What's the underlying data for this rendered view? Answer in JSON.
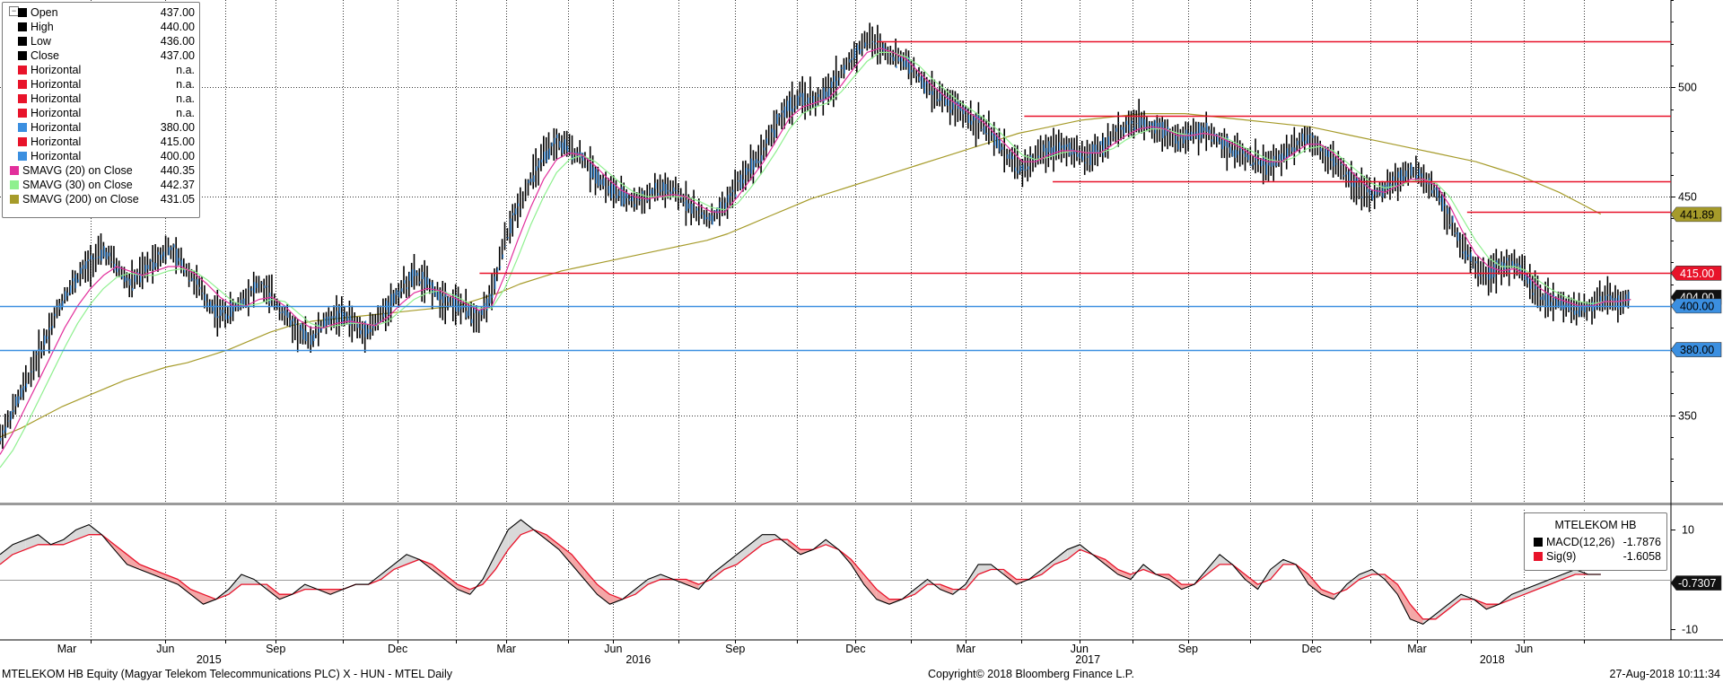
{
  "chart_data": [
    {
      "type": "candlestick",
      "title": "",
      "xlabel": "",
      "ylabel": "",
      "ylim": [
        310,
        540
      ],
      "y_ticks": [
        350,
        400,
        450,
        500
      ],
      "x_labels": [
        "Mar",
        "Jun",
        "Sep",
        "Dec",
        "Mar",
        "Jun",
        "Sep",
        "Dec",
        "Mar",
        "Jun",
        "Sep",
        "Dec",
        "Mar",
        "Jun"
      ],
      "year_labels": [
        "2015",
        "2016",
        "2017",
        "2018"
      ],
      "grid": true,
      "legend_placement": "top-left",
      "legend": [
        {
          "label": "Open",
          "value": "437.00",
          "color": "#000000"
        },
        {
          "label": "High",
          "value": "440.00",
          "color": "#000000"
        },
        {
          "label": "Low",
          "value": "436.00",
          "color": "#000000"
        },
        {
          "label": "Close",
          "value": "437.00",
          "color": "#000000"
        },
        {
          "label": "Horizontal",
          "value": "n.a.",
          "color": "#e8132a"
        },
        {
          "label": "Horizontal",
          "value": "n.a.",
          "color": "#e8132a"
        },
        {
          "label": "Horizontal",
          "value": "n.a.",
          "color": "#e8132a"
        },
        {
          "label": "Horizontal",
          "value": "n.a.",
          "color": "#e8132a"
        },
        {
          "label": "Horizontal",
          "value": "380.00",
          "color": "#3b8fe0"
        },
        {
          "label": "Horizontal",
          "value": "415.00",
          "color": "#e8132a"
        },
        {
          "label": "Horizontal",
          "value": "400.00",
          "color": "#3b8fe0"
        },
        {
          "label": "SMAVG (20) on Close",
          "value": "440.35",
          "color": "#e22f9c"
        },
        {
          "label": "SMAVG (30) on Close",
          "value": "442.37",
          "color": "#8ff08f"
        },
        {
          "label": "SMAVG (200) on Close",
          "value": "431.05",
          "color": "#a69b2a"
        }
      ],
      "price_tags": [
        {
          "value": "441.89",
          "y": 441.89,
          "color": "#a69b2a",
          "text_color": "#000000"
        },
        {
          "value": "415.00",
          "y": 415,
          "color": "#e8132a",
          "text_color": "#ffffff"
        },
        {
          "value": "404.00",
          "y": 404,
          "color": "#111111",
          "text_color": "#ffffff"
        },
        {
          "value": "400.00",
          "y": 400,
          "color": "#3b8fe0",
          "text_color": "#000000"
        },
        {
          "value": "380.00",
          "y": 380,
          "color": "#3b8fe0",
          "text_color": "#000000"
        }
      ],
      "horizontal_lines": [
        {
          "y": 521,
          "x_from": 0.525,
          "color": "#e8132a"
        },
        {
          "y": 487,
          "x_from": 0.613,
          "color": "#e8132a"
        },
        {
          "y": 457,
          "x_from": 0.63,
          "color": "#e8132a"
        },
        {
          "y": 443,
          "x_from": 0.878,
          "color": "#e8132a"
        },
        {
          "y": 415,
          "x_from": 0.287,
          "color": "#e8132a"
        },
        {
          "y": 400,
          "x_from": 0.0,
          "color": "#3b8fe0"
        },
        {
          "y": 380,
          "x_from": 0.0,
          "color": "#3b8fe0"
        }
      ],
      "close_series": {
        "name": "Close",
        "x_start": 0.0,
        "x_end": 0.976,
        "values": [
          340,
          352,
          365,
          378,
          392,
          405,
          413,
          420,
          425,
          418,
          410,
          415,
          422,
          426,
          420,
          412,
          402,
          396,
          398,
          405,
          410,
          404,
          396,
          388,
          385,
          392,
          396,
          394,
          388,
          392,
          400,
          408,
          414,
          410,
          404,
          402,
          398,
          395,
          405,
          430,
          445,
          458,
          468,
          475,
          472,
          468,
          460,
          454,
          450,
          448,
          450,
          454,
          452,
          448,
          442,
          440,
          446,
          456,
          464,
          472,
          484,
          492,
          495,
          494,
          498,
          507,
          515,
          522,
          519,
          514,
          512,
          504,
          498,
          494,
          490,
          486,
          482,
          475,
          468,
          462,
          468,
          472,
          474,
          470,
          468,
          472,
          478,
          482,
          484,
          482,
          480,
          476,
          478,
          480,
          477,
          472,
          470,
          466,
          464,
          468,
          474,
          478,
          472,
          466,
          460,
          454,
          450,
          454,
          458,
          462,
          458,
          452,
          440,
          426,
          418,
          414,
          418,
          420,
          412,
          404,
          402,
          400,
          398,
          400,
          404,
          401,
          405
        ]
      },
      "sma20_series": {
        "name": "SMAVG (20) on Close",
        "x_start": 0.0,
        "x_end": 0.976,
        "values": [
          332,
          342,
          354,
          366,
          378,
          390,
          400,
          408,
          414,
          418,
          416,
          414,
          416,
          418,
          418,
          415,
          410,
          404,
          400,
          400,
          403,
          404,
          400,
          394,
          390,
          390,
          392,
          393,
          392,
          391,
          395,
          401,
          406,
          408,
          407,
          404,
          401,
          398,
          400,
          414,
          430,
          445,
          458,
          467,
          470,
          469,
          464,
          458,
          453,
          450,
          449,
          450,
          451,
          450,
          446,
          443,
          443,
          450,
          458,
          466,
          476,
          486,
          491,
          493,
          495,
          501,
          509,
          516,
          518,
          516,
          513,
          507,
          501,
          496,
          492,
          488,
          484,
          478,
          472,
          466,
          466,
          469,
          471,
          471,
          470,
          470,
          474,
          478,
          481,
          482,
          481,
          478,
          478,
          479,
          478,
          475,
          472,
          468,
          466,
          466,
          470,
          474,
          474,
          470,
          464,
          458,
          453,
          452,
          455,
          458,
          458,
          455,
          446,
          434,
          424,
          418,
          416,
          417,
          414,
          408,
          404,
          402,
          400,
          400,
          402,
          402,
          403
        ]
      },
      "sma30_series": {
        "name": "SMAVG (30) on Close",
        "x_start": 0.0,
        "x_end": 0.976,
        "values": [
          326,
          334,
          345,
          357,
          369,
          381,
          392,
          401,
          408,
          413,
          415,
          414,
          414,
          416,
          417,
          416,
          412,
          407,
          402,
          400,
          401,
          403,
          402,
          397,
          392,
          390,
          391,
          392,
          392,
          391,
          393,
          398,
          403,
          406,
          407,
          405,
          402,
          399,
          399,
          408,
          422,
          437,
          450,
          461,
          467,
          469,
          466,
          461,
          456,
          452,
          450,
          450,
          450,
          450,
          448,
          445,
          444,
          447,
          454,
          462,
          471,
          481,
          488,
          491,
          493,
          498,
          505,
          512,
          516,
          516,
          514,
          510,
          504,
          499,
          494,
          490,
          486,
          481,
          475,
          469,
          467,
          468,
          470,
          471,
          470,
          470,
          472,
          476,
          479,
          481,
          481,
          479,
          478,
          479,
          478,
          476,
          473,
          470,
          467,
          466,
          468,
          472,
          473,
          471,
          466,
          461,
          456,
          454,
          455,
          457,
          458,
          456,
          450,
          440,
          430,
          422,
          418,
          418,
          416,
          411,
          407,
          404,
          402,
          401,
          402,
          402,
          403
        ]
      },
      "sma200_series": {
        "name": "SMAVG (200) on Close",
        "x_start": 0.0,
        "x_end": 0.958,
        "values": [
          340,
          344,
          349,
          354,
          358,
          362,
          366,
          369,
          372,
          374,
          377,
          380,
          384,
          388,
          391,
          393,
          394,
          395,
          396,
          397,
          398,
          399,
          400,
          403,
          406,
          410,
          413,
          416,
          418,
          420,
          422,
          424,
          426,
          428,
          430,
          433,
          437,
          441,
          445,
          449,
          452,
          455,
          458,
          461,
          464,
          467,
          470,
          473,
          476,
          479,
          481,
          483,
          485,
          486,
          487,
          488,
          488,
          488,
          487,
          486,
          485,
          484,
          483,
          482,
          480,
          478,
          476,
          474,
          472,
          470,
          468,
          466,
          463,
          460,
          456,
          452,
          447,
          442
        ]
      }
    },
    {
      "type": "line",
      "title": "",
      "ylim": [
        -12,
        14
      ],
      "y_ticks": [
        -10,
        10
      ],
      "legend_placement": "top-right",
      "legend_title": "MTELEKOM HB",
      "legend": [
        {
          "label": "MACD(12,26)",
          "value": "-1.7876",
          "color": "#000000"
        },
        {
          "label": "Sig(9)",
          "value": "-1.6058",
          "color": "#e8132a"
        }
      ],
      "price_tags": [
        {
          "value": "-0.7307",
          "y": -0.7307
        }
      ],
      "macd": {
        "name": "MACD(12,26)",
        "x_start": 0.0,
        "x_end": 0.958,
        "values": [
          5,
          7,
          8,
          9,
          7,
          8,
          10,
          11,
          9,
          6,
          3,
          2,
          1,
          0,
          -1,
          -3,
          -5,
          -4,
          -2,
          1,
          0,
          -2,
          -4,
          -3,
          -1,
          -2,
          -3,
          -2,
          -1,
          -1,
          1,
          3,
          5,
          4,
          2,
          0,
          -2,
          -3,
          0,
          5,
          10,
          12,
          10,
          8,
          6,
          3,
          0,
          -3,
          -5,
          -4,
          -2,
          0,
          1,
          0,
          -1,
          -2,
          1,
          3,
          5,
          7,
          9,
          9,
          7,
          5,
          6,
          8,
          6,
          3,
          -1,
          -4,
          -5,
          -4,
          -2,
          0,
          -2,
          -3,
          -1,
          3,
          3,
          1,
          -1,
          0,
          2,
          4,
          6,
          7,
          5,
          3,
          1,
          0,
          3,
          1,
          0,
          -2,
          -1,
          2,
          5,
          3,
          0,
          -2,
          2,
          4,
          3,
          -1,
          -3,
          -4,
          -1,
          1,
          2,
          0,
          -3,
          -8,
          -9,
          -7,
          -5,
          -3,
          -4,
          -6,
          -5,
          -3,
          -2,
          -1,
          0,
          1,
          2,
          1,
          1
        ]
      },
      "signal": {
        "name": "Sig(9)",
        "x_start": 0.0,
        "x_end": 0.958,
        "values": [
          3,
          5,
          6,
          7,
          7,
          7,
          8,
          9,
          9,
          7,
          5,
          3,
          2,
          1,
          0,
          -2,
          -3,
          -4,
          -3,
          -1,
          -1,
          -1,
          -3,
          -3,
          -2,
          -2,
          -2,
          -2,
          -1,
          -1,
          0,
          2,
          3,
          4,
          3,
          1,
          -1,
          -2,
          -1,
          2,
          6,
          9,
          10,
          9,
          7,
          5,
          2,
          -1,
          -3,
          -4,
          -3,
          -1,
          0,
          0,
          0,
          -1,
          0,
          2,
          3,
          5,
          7,
          8,
          8,
          6,
          6,
          7,
          6,
          4,
          1,
          -2,
          -4,
          -4,
          -3,
          -1,
          -1,
          -2,
          -2,
          1,
          2,
          2,
          0,
          0,
          1,
          3,
          4,
          6,
          5,
          4,
          2,
          1,
          2,
          1,
          1,
          -1,
          -1,
          1,
          3,
          3,
          1,
          -1,
          0,
          3,
          3,
          1,
          -2,
          -3,
          -2,
          0,
          1,
          1,
          -1,
          -5,
          -8,
          -8,
          -6,
          -4,
          -4,
          -5,
          -5,
          -4,
          -3,
          -2,
          -1,
          0,
          1,
          1,
          1
        ]
      }
    }
  ],
  "footer": {
    "left": "MTELEKOM HB Equity (Magyar Telekom Telecommunications PLC) X - HUN - MTEL  Daily",
    "center": "Copyright© 2018 Bloomberg Finance L.P.",
    "right": "27-Aug-2018 10:11:34"
  },
  "colors": {
    "candle": "#000000",
    "candle_body": "#3b8fe0",
    "grid": "#333333",
    "macd_fill": "#d9d9d9",
    "signal_fill": "#f4a7a7"
  }
}
